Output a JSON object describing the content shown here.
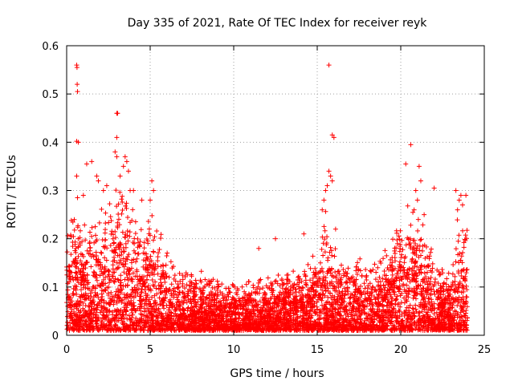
{
  "chart_data": {
    "type": "scatter",
    "title": "Day 335 of 2021, Rate Of TEC Index for receiver reyk",
    "xlabel": "GPS time / hours",
    "ylabel": "ROTI / TECUs",
    "xlim": [
      0,
      25
    ],
    "ylim": [
      0,
      0.6
    ],
    "x_ticks": [
      0,
      5,
      10,
      15,
      20,
      25
    ],
    "y_ticks": [
      0,
      0.1,
      0.2,
      0.3,
      0.4,
      0.5,
      0.6
    ],
    "x_tick_labels": [
      "0",
      "5",
      "10",
      "15",
      "20",
      "25"
    ],
    "y_tick_labels": [
      "0",
      "0.1",
      "0.2",
      "0.3",
      "0.4",
      "0.5",
      "0.6"
    ],
    "grid": true,
    "marker": "+",
    "marker_color": "#ff0000",
    "grid_color": "#a0a0a0",
    "axis_color": "#000000",
    "envelope": {
      "description_hours": [
        0,
        0.5,
        1,
        1.5,
        2,
        2.5,
        3,
        3.5,
        4,
        4.5,
        5,
        5.5,
        6,
        6.5,
        7,
        8,
        9,
        10,
        11,
        12,
        13,
        14,
        15,
        15.5,
        16,
        16.5,
        17,
        18,
        19,
        19.5,
        20,
        20.5,
        21,
        21.5,
        22,
        22.5,
        23,
        23.5,
        24
      ],
      "typical_max": [
        0.22,
        0.24,
        0.2,
        0.22,
        0.24,
        0.27,
        0.3,
        0.28,
        0.24,
        0.22,
        0.25,
        0.2,
        0.17,
        0.13,
        0.12,
        0.12,
        0.11,
        0.1,
        0.11,
        0.11,
        0.12,
        0.13,
        0.17,
        0.23,
        0.18,
        0.14,
        0.15,
        0.14,
        0.16,
        0.2,
        0.22,
        0.24,
        0.25,
        0.2,
        0.16,
        0.14,
        0.13,
        0.25,
        0.22
      ]
    },
    "outliers": [
      {
        "x": 0.6,
        "y": 0.56
      },
      {
        "x": 0.62,
        "y": 0.555
      },
      {
        "x": 0.63,
        "y": 0.52
      },
      {
        "x": 0.65,
        "y": 0.505
      },
      {
        "x": 0.6,
        "y": 0.402
      },
      {
        "x": 0.7,
        "y": 0.4
      },
      {
        "x": 0.6,
        "y": 0.33
      },
      {
        "x": 0.65,
        "y": 0.285
      },
      {
        "x": 1.0,
        "y": 0.29
      },
      {
        "x": 1.2,
        "y": 0.355
      },
      {
        "x": 1.5,
        "y": 0.36
      },
      {
        "x": 1.8,
        "y": 0.33
      },
      {
        "x": 1.9,
        "y": 0.32
      },
      {
        "x": 2.2,
        "y": 0.3
      },
      {
        "x": 2.4,
        "y": 0.31
      },
      {
        "x": 3.0,
        "y": 0.46
      },
      {
        "x": 3.05,
        "y": 0.46
      },
      {
        "x": 3.0,
        "y": 0.41
      },
      {
        "x": 2.9,
        "y": 0.38
      },
      {
        "x": 3.0,
        "y": 0.37
      },
      {
        "x": 3.5,
        "y": 0.37
      },
      {
        "x": 3.6,
        "y": 0.36
      },
      {
        "x": 3.4,
        "y": 0.35
      },
      {
        "x": 3.7,
        "y": 0.34
      },
      {
        "x": 3.2,
        "y": 0.33
      },
      {
        "x": 3.8,
        "y": 0.3
      },
      {
        "x": 4.0,
        "y": 0.3
      },
      {
        "x": 4.5,
        "y": 0.28
      },
      {
        "x": 5.1,
        "y": 0.32
      },
      {
        "x": 5.2,
        "y": 0.3
      },
      {
        "x": 5.0,
        "y": 0.28
      },
      {
        "x": 11.5,
        "y": 0.18
      },
      {
        "x": 12.5,
        "y": 0.2
      },
      {
        "x": 14.2,
        "y": 0.21
      },
      {
        "x": 15.7,
        "y": 0.34
      },
      {
        "x": 15.8,
        "y": 0.33
      },
      {
        "x": 15.6,
        "y": 0.31
      },
      {
        "x": 15.5,
        "y": 0.3
      },
      {
        "x": 15.9,
        "y": 0.32
      },
      {
        "x": 15.4,
        "y": 0.28
      },
      {
        "x": 15.3,
        "y": 0.26
      },
      {
        "x": 15.7,
        "y": 0.56
      },
      {
        "x": 15.9,
        "y": 0.415
      },
      {
        "x": 16.0,
        "y": 0.41
      },
      {
        "x": 16.1,
        "y": 0.22
      },
      {
        "x": 20.3,
        "y": 0.355
      },
      {
        "x": 20.6,
        "y": 0.395
      },
      {
        "x": 20.9,
        "y": 0.3
      },
      {
        "x": 21.1,
        "y": 0.35
      },
      {
        "x": 21.2,
        "y": 0.32
      },
      {
        "x": 21.0,
        "y": 0.28
      },
      {
        "x": 20.8,
        "y": 0.26
      },
      {
        "x": 21.4,
        "y": 0.25
      },
      {
        "x": 22.0,
        "y": 0.305
      },
      {
        "x": 23.3,
        "y": 0.3
      },
      {
        "x": 23.5,
        "y": 0.28
      },
      {
        "x": 23.6,
        "y": 0.29
      },
      {
        "x": 23.7,
        "y": 0.27
      },
      {
        "x": 23.4,
        "y": 0.26
      },
      {
        "x": 23.9,
        "y": 0.29
      }
    ],
    "time_range_hours": [
      0,
      24
    ],
    "baseline_min": 0.01
  }
}
